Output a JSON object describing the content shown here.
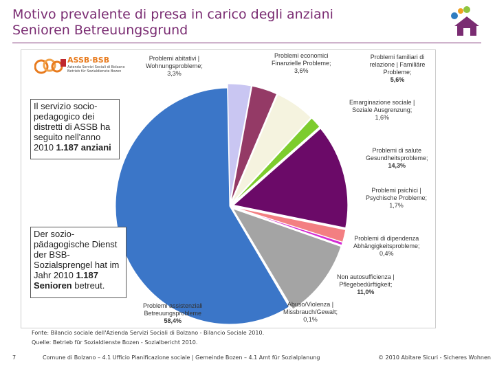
{
  "header": {
    "title_it": "Motivo prevalente di presa in carico degli anziani",
    "title_de": "Senioren Betreuungsgrund"
  },
  "logo": {
    "name": "ASSB·BSB",
    "subtitle": "Azienda Servizi Sociali di Bolzano Betrieb für Sozialdienste Bozen"
  },
  "notes": {
    "it_text": "Il servizio socio-pedagogico dei distretti di ASSB ha seguito nell'anno 2010",
    "it_bold": "1.187 anziani",
    "de_text": "Der sozio-pädagogische Dienst der BSB-Sozialsprengel hat im Jahr 2010",
    "de_bold": "1.187 Senioren",
    "de_tail": " betreut."
  },
  "chart_data": {
    "type": "pie",
    "title": "Motivo prevalente di presa in carico degli anziani / Senioren Betreuungsgrund",
    "slices": [
      {
        "label_it": "Problemi abitativi |",
        "label_de": "Wohnungsprobleme;",
        "value": 3.3,
        "display": "3,3%",
        "color": "#c9c6f2"
      },
      {
        "label_it": "Problemi economici",
        "label_de": "Finanzielle Probleme;",
        "value": 3.6,
        "display": "3,6%",
        "color": "#943a66"
      },
      {
        "label_it": "Problemi familiari di relazione | Familiäre",
        "label_de": "Probleme;",
        "value": 5.6,
        "display": "5,6%",
        "color": "#f5f3df"
      },
      {
        "label_it": "Emarginazione sociale |",
        "label_de": "Soziale Ausgrenzung;",
        "value": 1.6,
        "display": "1,6%",
        "color": "#7dcc2d"
      },
      {
        "label_it": "Problemi di salute",
        "label_de": "Gesundheitsprobleme;",
        "value": 14.3,
        "display": "14,3%",
        "color": "#6b0a68"
      },
      {
        "label_it": "Problemi psichici |",
        "label_de": "Psychische Probleme;",
        "value": 1.7,
        "display": "1,7%",
        "color": "#f37f82"
      },
      {
        "label_it": "Problemi di dipendenza",
        "label_de": "Abhängigkeitsprobleme;",
        "value": 0.4,
        "display": "0,4%",
        "color": "#d42bd4"
      },
      {
        "label_it": "Non autosufficienza |",
        "label_de": "Pflegebedürftigkeit;",
        "value": 11.0,
        "display": "11,0%",
        "color": "#a4a4a4"
      },
      {
        "label_it": "Abuso/Violenza |",
        "label_de": "Missbrauch/Gewalt;",
        "value": 0.1,
        "display": "0,1%",
        "color": "#0a1e6b"
      },
      {
        "label_it": "Problemi assistenziali",
        "label_de": "Betreuungsprobleme",
        "value": 58.4,
        "display": "58,4%",
        "color": "#3b76c8"
      }
    ]
  },
  "source": {
    "it": "Fonte: Bilancio sociale dell'Azienda Servizi Sociali di Bolzano - Bilancio Sociale 2010.",
    "de": "Quelle: Betrieb für Sozialdienste Bozen - Sozialbericht 2010."
  },
  "footer": {
    "page": "7",
    "center": "Comune di Bolzano – 4.1 Ufficio Pianificazione sociale | Gemeinde Bozen – 4.1 Amt für Sozialplanung",
    "right": "© 2010 Abitare Sicuri - Sicheres Wohnen"
  }
}
